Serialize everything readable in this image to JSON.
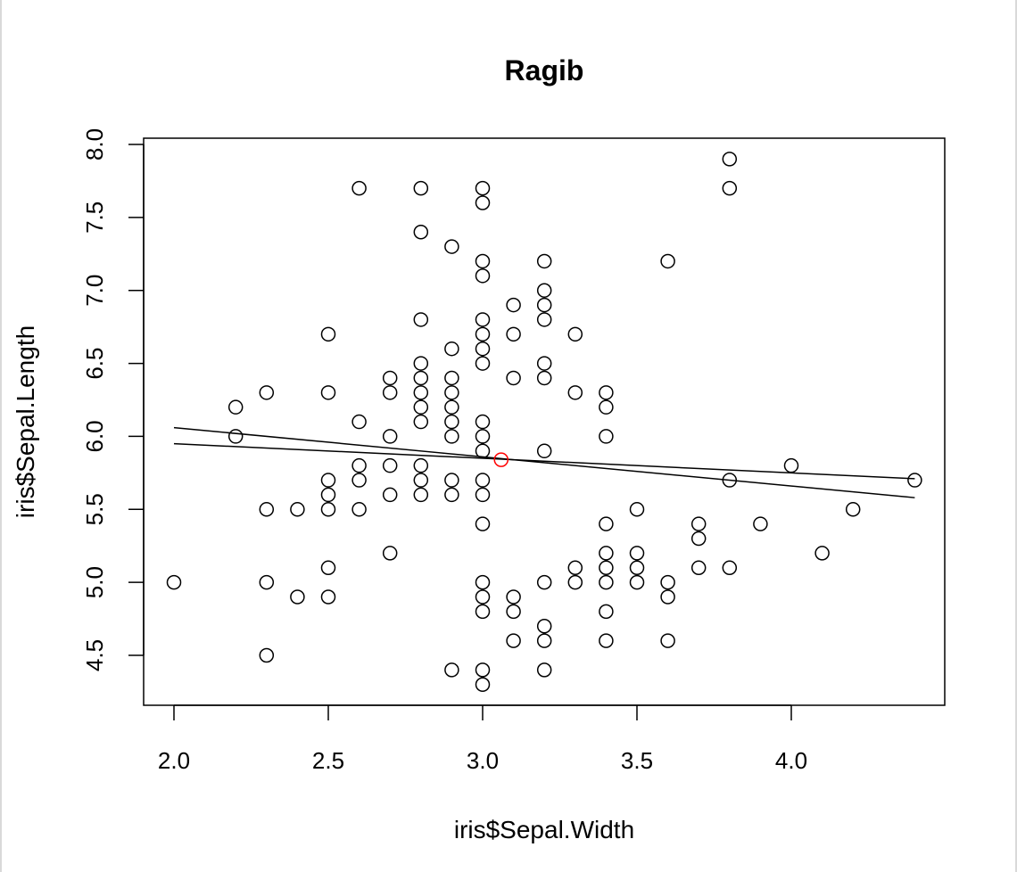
{
  "chart_data": {
    "type": "scatter",
    "title": "Ragib",
    "xlabel": "iris$Sepal.Width",
    "ylabel": "iris$Sepal.Length",
    "xlim": [
      1.9,
      4.5
    ],
    "ylim": [
      4.2,
      8.0
    ],
    "x_ticks": [
      "2.0",
      "2.5",
      "3.0",
      "3.5",
      "4.0"
    ],
    "y_ticks": [
      "4.5",
      "5.0",
      "5.5",
      "6.0",
      "6.5",
      "7.0",
      "7.5",
      "8.0"
    ],
    "grid": false,
    "point_color": "#000000",
    "highlight_color": "#ff0000",
    "points": [
      [
        2.0,
        5.0
      ],
      [
        2.2,
        6.2
      ],
      [
        2.2,
        6.0
      ],
      [
        2.3,
        6.3
      ],
      [
        2.3,
        5.5
      ],
      [
        2.3,
        5.0
      ],
      [
        2.3,
        4.5
      ],
      [
        2.4,
        5.5
      ],
      [
        2.4,
        4.9
      ],
      [
        2.5,
        6.7
      ],
      [
        2.5,
        6.3
      ],
      [
        2.5,
        5.7
      ],
      [
        2.5,
        5.6
      ],
      [
        2.5,
        5.5
      ],
      [
        2.5,
        5.1
      ],
      [
        2.5,
        4.9
      ],
      [
        2.6,
        7.7
      ],
      [
        2.6,
        6.1
      ],
      [
        2.6,
        5.8
      ],
      [
        2.6,
        5.7
      ],
      [
        2.6,
        5.5
      ],
      [
        2.7,
        6.4
      ],
      [
        2.7,
        6.3
      ],
      [
        2.7,
        6.0
      ],
      [
        2.7,
        5.8
      ],
      [
        2.7,
        5.6
      ],
      [
        2.7,
        5.2
      ],
      [
        2.8,
        7.7
      ],
      [
        2.8,
        7.4
      ],
      [
        2.8,
        6.8
      ],
      [
        2.8,
        6.5
      ],
      [
        2.8,
        6.4
      ],
      [
        2.8,
        6.3
      ],
      [
        2.8,
        6.2
      ],
      [
        2.8,
        6.1
      ],
      [
        2.8,
        5.8
      ],
      [
        2.8,
        5.7
      ],
      [
        2.8,
        5.6
      ],
      [
        2.9,
        7.3
      ],
      [
        2.9,
        6.6
      ],
      [
        2.9,
        6.4
      ],
      [
        2.9,
        6.3
      ],
      [
        2.9,
        6.2
      ],
      [
        2.9,
        6.1
      ],
      [
        2.9,
        6.0
      ],
      [
        2.9,
        5.7
      ],
      [
        2.9,
        5.6
      ],
      [
        2.9,
        4.4
      ],
      [
        3.0,
        7.7
      ],
      [
        3.0,
        7.6
      ],
      [
        3.0,
        7.2
      ],
      [
        3.0,
        7.1
      ],
      [
        3.0,
        6.8
      ],
      [
        3.0,
        6.7
      ],
      [
        3.0,
        6.6
      ],
      [
        3.0,
        6.5
      ],
      [
        3.0,
        6.1
      ],
      [
        3.0,
        6.0
      ],
      [
        3.0,
        5.9
      ],
      [
        3.0,
        5.7
      ],
      [
        3.0,
        5.6
      ],
      [
        3.0,
        5.4
      ],
      [
        3.0,
        5.0
      ],
      [
        3.0,
        4.9
      ],
      [
        3.0,
        4.8
      ],
      [
        3.0,
        4.4
      ],
      [
        3.0,
        4.3
      ],
      [
        3.1,
        6.9
      ],
      [
        3.1,
        6.7
      ],
      [
        3.1,
        6.4
      ],
      [
        3.1,
        4.9
      ],
      [
        3.1,
        4.8
      ],
      [
        3.1,
        4.6
      ],
      [
        3.2,
        7.2
      ],
      [
        3.2,
        7.0
      ],
      [
        3.2,
        6.9
      ],
      [
        3.2,
        6.8
      ],
      [
        3.2,
        6.5
      ],
      [
        3.2,
        6.4
      ],
      [
        3.2,
        5.9
      ],
      [
        3.2,
        5.0
      ],
      [
        3.2,
        4.7
      ],
      [
        3.2,
        4.6
      ],
      [
        3.2,
        4.4
      ],
      [
        3.3,
        6.7
      ],
      [
        3.3,
        6.3
      ],
      [
        3.3,
        5.1
      ],
      [
        3.3,
        5.0
      ],
      [
        3.4,
        6.3
      ],
      [
        3.4,
        6.2
      ],
      [
        3.4,
        6.0
      ],
      [
        3.4,
        5.4
      ],
      [
        3.4,
        5.2
      ],
      [
        3.4,
        5.1
      ],
      [
        3.4,
        5.0
      ],
      [
        3.4,
        4.8
      ],
      [
        3.4,
        4.6
      ],
      [
        3.5,
        5.5
      ],
      [
        3.5,
        5.2
      ],
      [
        3.5,
        5.1
      ],
      [
        3.5,
        5.0
      ],
      [
        3.6,
        7.2
      ],
      [
        3.6,
        5.0
      ],
      [
        3.6,
        4.9
      ],
      [
        3.6,
        4.6
      ],
      [
        3.7,
        5.4
      ],
      [
        3.7,
        5.3
      ],
      [
        3.7,
        5.1
      ],
      [
        3.8,
        7.9
      ],
      [
        3.8,
        7.7
      ],
      [
        3.8,
        5.7
      ],
      [
        3.8,
        5.1
      ],
      [
        3.9,
        5.4
      ],
      [
        4.0,
        5.8
      ],
      [
        4.1,
        5.2
      ],
      [
        4.2,
        5.5
      ],
      [
        4.4,
        5.7
      ]
    ],
    "highlight_point": [
      3.06,
      5.84
    ],
    "lines": [
      {
        "x": [
          2.0,
          4.4
        ],
        "y": [
          5.95,
          5.71
        ]
      },
      {
        "x": [
          2.0,
          4.4
        ],
        "y": [
          6.06,
          5.58
        ]
      }
    ]
  }
}
